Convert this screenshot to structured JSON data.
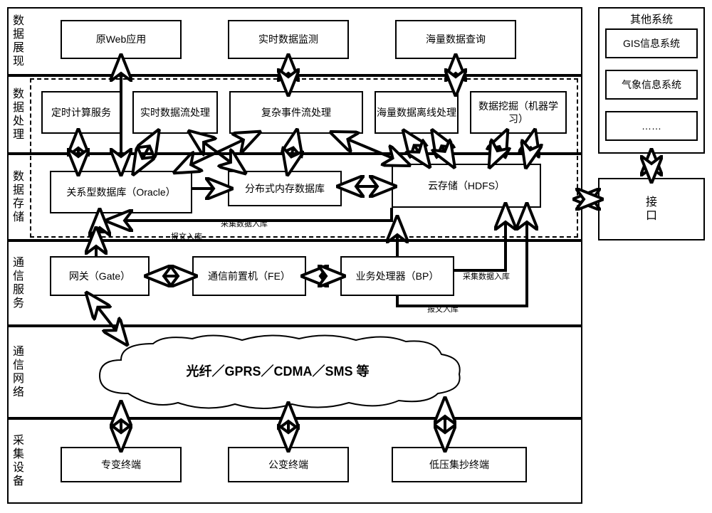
{
  "layers": {
    "l1_label": "数据展现",
    "l2_label": "数据处理",
    "l3_label": "数据存储",
    "l4_label": "通信服务",
    "l5_label": "通信网络",
    "l6_label": "采集设备"
  },
  "row1": {
    "b1": "原Web应用",
    "b2": "实时数据监测",
    "b3": "海量数据查询"
  },
  "row2": {
    "b1": "定时计算服务",
    "b2": "实时数据流处理",
    "b3": "复杂事件流处理",
    "b4": "海量数据离线处理",
    "b5": "数据挖掘（机器学习）"
  },
  "row3": {
    "b1": "关系型数据库（Oracle）",
    "b2": "分布式内存数据库",
    "b3": "云存储（HDFS）"
  },
  "row4": {
    "b1": "网关（Gate）",
    "b2": "通信前置机（FE）",
    "b3": "业务处理器（BP）"
  },
  "row5": {
    "cloud": "光纤／GPRS／CDMA／SMS 等"
  },
  "row6": {
    "b1": "专变终端",
    "b2": "公变终端",
    "b3": "低压集抄终端"
  },
  "side": {
    "title": "其他系统",
    "b1": "GIS信息系统",
    "b2": "气象信息系统",
    "b3": "……",
    "interface": "接口"
  },
  "labels": {
    "data_in": "采集数据入库",
    "msg_in": "报文入库"
  },
  "styling": {
    "border_color": "#000000",
    "background": "#ffffff",
    "box_border_width": 2,
    "font_main": 14,
    "font_vlabel": 16,
    "font_cloud": 18,
    "font_small": 11,
    "arrow_stroke": "#000000",
    "arrow_fill": "#ffffff",
    "arrow_stroke_width": 1.5,
    "dash_pattern": "6,4"
  }
}
